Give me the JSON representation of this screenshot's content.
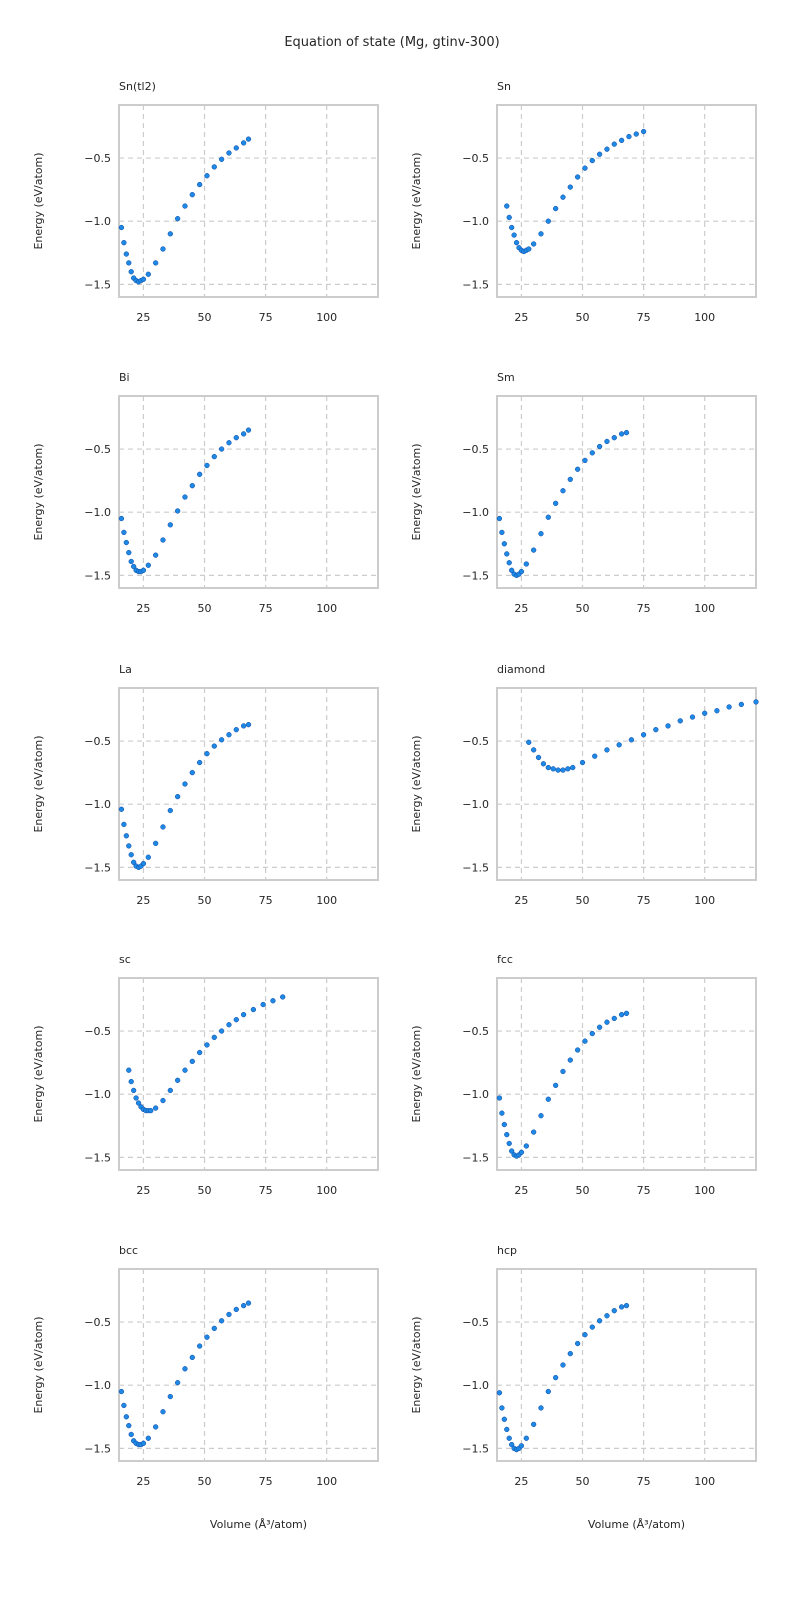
{
  "chart_data": {
    "type": "scatter",
    "title": "Equation of state (Mg, gtinv-300)",
    "xlabel": "Volume (Å³/atom)",
    "ylabel": "Energy (eV/atom)",
    "xlim": [
      15,
      121
    ],
    "ylim": [
      -1.6,
      -0.08
    ],
    "xticks": [
      25,
      50,
      75,
      100
    ],
    "yticks": [
      -1.5,
      -1.0,
      -0.5
    ],
    "ytick_labels": [
      "−1.5",
      "−1.0",
      "−0.5"
    ],
    "grid": true,
    "marker_color": "#1e88e5",
    "marker_edge_color": "#0d47a1",
    "subplots": [
      {
        "title": "Sn(tl2)",
        "x": [
          16,
          17,
          18,
          19,
          20,
          21,
          22,
          23,
          24,
          25,
          27,
          30,
          33,
          36,
          39,
          42,
          45,
          48,
          51,
          54,
          57,
          60,
          63,
          66,
          68
        ],
        "y": [
          -1.05,
          -1.17,
          -1.26,
          -1.33,
          -1.4,
          -1.45,
          -1.47,
          -1.48,
          -1.47,
          -1.46,
          -1.42,
          -1.33,
          -1.22,
          -1.1,
          -0.98,
          -0.88,
          -0.79,
          -0.71,
          -0.64,
          -0.57,
          -0.51,
          -0.46,
          -0.42,
          -0.38,
          -0.35
        ]
      },
      {
        "title": "Sn",
        "x": [
          19,
          20,
          21,
          22,
          23,
          24,
          25,
          26,
          27,
          28,
          30,
          33,
          36,
          39,
          42,
          45,
          48,
          51,
          54,
          57,
          60,
          63,
          66,
          69,
          72,
          75
        ],
        "y": [
          -0.88,
          -0.97,
          -1.05,
          -1.11,
          -1.17,
          -1.21,
          -1.23,
          -1.24,
          -1.23,
          -1.22,
          -1.18,
          -1.1,
          -1.0,
          -0.9,
          -0.81,
          -0.73,
          -0.65,
          -0.58,
          -0.52,
          -0.47,
          -0.43,
          -0.39,
          -0.36,
          -0.33,
          -0.31,
          -0.29
        ]
      },
      {
        "title": "Bi",
        "x": [
          16,
          17,
          18,
          19,
          20,
          21,
          22,
          23,
          24,
          25,
          27,
          30,
          33,
          36,
          39,
          42,
          45,
          48,
          51,
          54,
          57,
          60,
          63,
          66,
          68
        ],
        "y": [
          -1.05,
          -1.16,
          -1.24,
          -1.32,
          -1.39,
          -1.43,
          -1.46,
          -1.47,
          -1.47,
          -1.46,
          -1.42,
          -1.34,
          -1.22,
          -1.1,
          -0.99,
          -0.88,
          -0.79,
          -0.7,
          -0.63,
          -0.56,
          -0.5,
          -0.45,
          -0.41,
          -0.38,
          -0.35
        ]
      },
      {
        "title": "Sm",
        "x": [
          16,
          17,
          18,
          19,
          20,
          21,
          22,
          23,
          24,
          25,
          27,
          30,
          33,
          36,
          39,
          42,
          45,
          48,
          51,
          54,
          57,
          60,
          63,
          66,
          68
        ],
        "y": [
          -1.05,
          -1.16,
          -1.25,
          -1.33,
          -1.4,
          -1.46,
          -1.49,
          -1.5,
          -1.49,
          -1.47,
          -1.41,
          -1.3,
          -1.17,
          -1.04,
          -0.93,
          -0.83,
          -0.74,
          -0.66,
          -0.59,
          -0.53,
          -0.48,
          -0.44,
          -0.41,
          -0.38,
          -0.37
        ]
      },
      {
        "title": "La",
        "x": [
          16,
          17,
          18,
          19,
          20,
          21,
          22,
          23,
          24,
          25,
          27,
          30,
          33,
          36,
          39,
          42,
          45,
          48,
          51,
          54,
          57,
          60,
          63,
          66,
          68
        ],
        "y": [
          -1.04,
          -1.16,
          -1.25,
          -1.33,
          -1.4,
          -1.46,
          -1.49,
          -1.5,
          -1.49,
          -1.47,
          -1.42,
          -1.31,
          -1.18,
          -1.05,
          -0.94,
          -0.84,
          -0.75,
          -0.67,
          -0.6,
          -0.54,
          -0.49,
          -0.45,
          -0.41,
          -0.38,
          -0.37
        ]
      },
      {
        "title": "diamond",
        "x": [
          28,
          30,
          32,
          34,
          36,
          38,
          40,
          42,
          44,
          46,
          50,
          55,
          60,
          65,
          70,
          75,
          80,
          85,
          90,
          95,
          100,
          105,
          110,
          115,
          121
        ],
        "y": [
          -0.51,
          -0.57,
          -0.63,
          -0.68,
          -0.71,
          -0.72,
          -0.73,
          -0.73,
          -0.72,
          -0.71,
          -0.67,
          -0.62,
          -0.57,
          -0.53,
          -0.49,
          -0.45,
          -0.41,
          -0.38,
          -0.34,
          -0.31,
          -0.28,
          -0.26,
          -0.23,
          -0.21,
          -0.19
        ]
      },
      {
        "title": "sc",
        "x": [
          19,
          20,
          21,
          22,
          23,
          24,
          25,
          26,
          27,
          28,
          30,
          33,
          36,
          39,
          42,
          45,
          48,
          51,
          54,
          57,
          60,
          63,
          66,
          70,
          74,
          78,
          82
        ],
        "y": [
          -0.81,
          -0.9,
          -0.97,
          -1.03,
          -1.07,
          -1.1,
          -1.12,
          -1.13,
          -1.13,
          -1.13,
          -1.11,
          -1.05,
          -0.97,
          -0.89,
          -0.81,
          -0.74,
          -0.67,
          -0.61,
          -0.55,
          -0.5,
          -0.45,
          -0.41,
          -0.37,
          -0.33,
          -0.29,
          -0.26,
          -0.23
        ]
      },
      {
        "title": "fcc",
        "x": [
          16,
          17,
          18,
          19,
          20,
          21,
          22,
          23,
          24,
          25,
          27,
          30,
          33,
          36,
          39,
          42,
          45,
          48,
          51,
          54,
          57,
          60,
          63,
          66,
          68
        ],
        "y": [
          -1.03,
          -1.15,
          -1.24,
          -1.32,
          -1.39,
          -1.45,
          -1.48,
          -1.49,
          -1.48,
          -1.46,
          -1.41,
          -1.3,
          -1.17,
          -1.04,
          -0.93,
          -0.82,
          -0.73,
          -0.65,
          -0.58,
          -0.52,
          -0.47,
          -0.43,
          -0.4,
          -0.37,
          -0.36
        ]
      },
      {
        "title": "bcc",
        "x": [
          16,
          17,
          18,
          19,
          20,
          21,
          22,
          23,
          24,
          25,
          27,
          30,
          33,
          36,
          39,
          42,
          45,
          48,
          51,
          54,
          57,
          60,
          63,
          66,
          68
        ],
        "y": [
          -1.05,
          -1.16,
          -1.25,
          -1.32,
          -1.39,
          -1.44,
          -1.46,
          -1.47,
          -1.47,
          -1.46,
          -1.42,
          -1.33,
          -1.21,
          -1.09,
          -0.98,
          -0.87,
          -0.78,
          -0.69,
          -0.62,
          -0.55,
          -0.49,
          -0.44,
          -0.4,
          -0.37,
          -0.35
        ]
      },
      {
        "title": "hcp",
        "x": [
          16,
          17,
          18,
          19,
          20,
          21,
          22,
          23,
          24,
          25,
          27,
          30,
          33,
          36,
          39,
          42,
          45,
          48,
          51,
          54,
          57,
          60,
          63,
          66,
          68
        ],
        "y": [
          -1.06,
          -1.18,
          -1.27,
          -1.35,
          -1.42,
          -1.47,
          -1.5,
          -1.51,
          -1.5,
          -1.48,
          -1.42,
          -1.31,
          -1.18,
          -1.05,
          -0.94,
          -0.84,
          -0.75,
          -0.67,
          -0.6,
          -0.54,
          -0.49,
          -0.45,
          -0.41,
          -0.38,
          -0.37
        ]
      }
    ]
  }
}
